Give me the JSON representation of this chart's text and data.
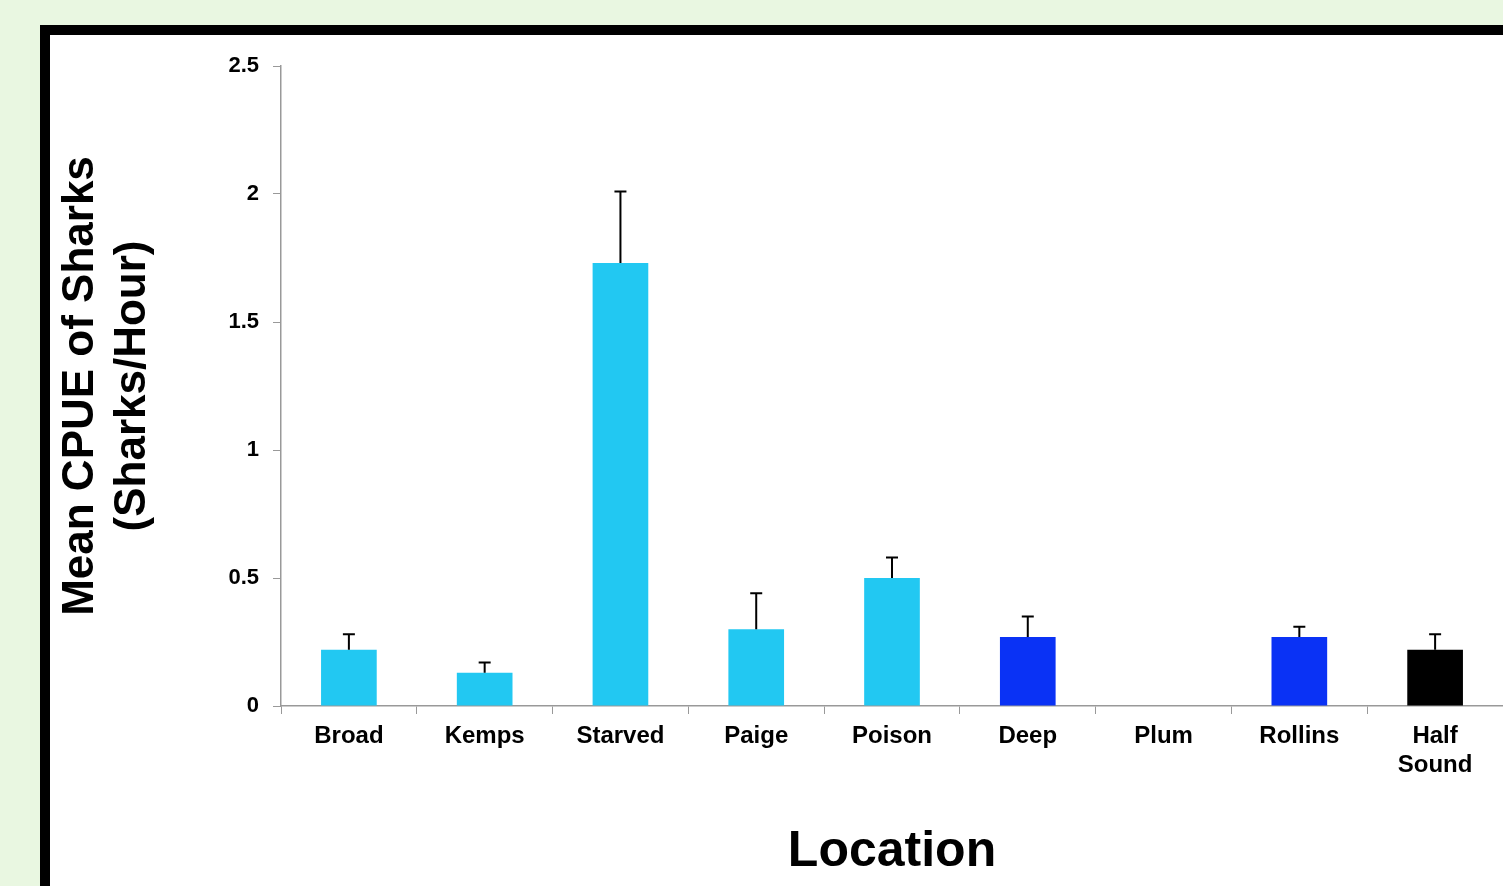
{
  "chart_data": {
    "type": "bar",
    "xlabel": "Location",
    "ylabel": "Mean CPUE of Sharks (Sharks/Hour)",
    "categories": [
      "Broad",
      "Kemps",
      "Starved",
      "Paige",
      "Poison",
      "Deep",
      "Plum",
      "Rollins",
      "Half Sound"
    ],
    "values": [
      0.22,
      0.13,
      1.73,
      0.3,
      0.5,
      0.27,
      0,
      0.27,
      0.22
    ],
    "colors": [
      "#22c8f2",
      "#22c8f2",
      "#22c8f2",
      "#22c8f2",
      "#22c8f2",
      "#0a32f5",
      "#22c8f2",
      "#0a32f5",
      "#000000"
    ],
    "errors": [
      [
        0.22,
        0.28
      ],
      [
        0.13,
        0.17
      ],
      [
        1.73,
        2.01
      ],
      [
        0.3,
        0.44
      ],
      [
        0.5,
        0.58
      ],
      [
        0.27,
        0.35
      ],
      null,
      [
        0.27,
        0.31
      ],
      [
        0.22,
        0.28
      ]
    ],
    "ylim": [
      0,
      2.5
    ],
    "yticks": [
      0,
      0.5,
      1,
      1.5,
      2,
      2.5
    ],
    "grid": false,
    "legend": false
  }
}
